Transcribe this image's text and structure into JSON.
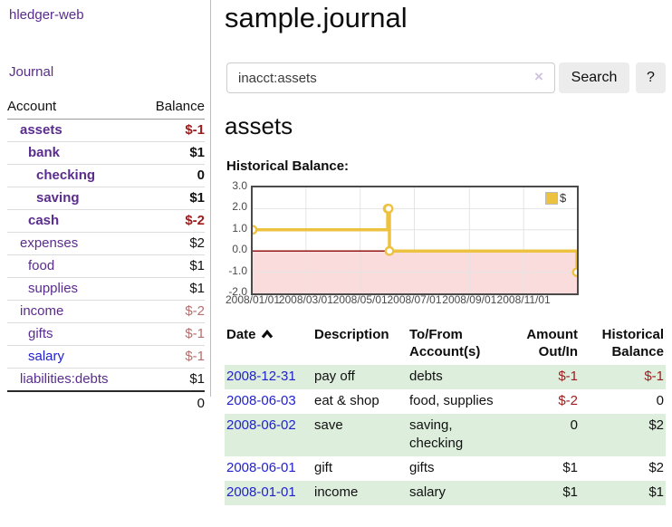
{
  "palette": {
    "brand_purple": "#5a2c8d",
    "link_blue": "#2222cc",
    "negative_strong": "#9b1c1c",
    "negative_soft": "#b56f6f",
    "row_green": "#ddeedd",
    "chart_line_gold": "#edc240",
    "chart_negative_fill": "#fbdcdc",
    "chart_zero_line": "#8b0000"
  },
  "app": {
    "brand": "hledger-web",
    "nav_journal": "Journal"
  },
  "sidebar": {
    "header": {
      "account": "Account",
      "balance": "Balance"
    },
    "accounts": [
      {
        "name": "assets",
        "balance": "$-1",
        "indent": 1,
        "bold": true,
        "balance_tone": "negative-strong"
      },
      {
        "name": "bank",
        "balance": "$1",
        "indent": 2,
        "bold": true,
        "balance_tone": "plain"
      },
      {
        "name": "checking",
        "balance": "0",
        "indent": 3,
        "bold": true,
        "balance_tone": "plain"
      },
      {
        "name": "saving",
        "balance": "$1",
        "indent": 3,
        "bold": true,
        "balance_tone": "plain"
      },
      {
        "name": "cash",
        "balance": "$-2",
        "indent": 2,
        "bold": true,
        "balance_tone": "negative-strong"
      },
      {
        "name": "expenses",
        "balance": "$2",
        "indent": 1,
        "bold": false,
        "balance_tone": "plain"
      },
      {
        "name": "food",
        "balance": "$1",
        "indent": 2,
        "bold": false,
        "balance_tone": "plain"
      },
      {
        "name": "supplies",
        "balance": "$1",
        "indent": 2,
        "bold": false,
        "balance_tone": "plain"
      },
      {
        "name": "income",
        "balance": "$-2",
        "indent": 1,
        "bold": false,
        "balance_tone": "negative-soft"
      },
      {
        "name": "gifts",
        "balance": "$-1",
        "indent": 2,
        "bold": false,
        "balance_tone": "negative-soft"
      },
      {
        "name": "salary",
        "balance": "$-1",
        "indent": 2,
        "bold": false,
        "balance_tone": "negative-soft",
        "link_tone": "blue"
      },
      {
        "name": "liabilities:debts",
        "balance": "$1",
        "indent": 1,
        "bold": false,
        "balance_tone": "plain",
        "last": true
      }
    ],
    "total": "0"
  },
  "main": {
    "title": "sample.journal",
    "search": {
      "value": "inacct:assets",
      "clear_icon": "×",
      "search_button": "Search",
      "help_button": "?"
    },
    "account_heading": "assets",
    "chart_title": "Historical Balance:"
  },
  "chart_data": {
    "type": "line",
    "step": true,
    "title": "Historical Balance:",
    "legend": [
      {
        "label": "$",
        "color": "#edc240"
      }
    ],
    "legend_position": "top-right",
    "grid": true,
    "xlim": [
      "2008-01-01",
      "2008-12-31"
    ],
    "ylim": [
      -2,
      3
    ],
    "xticks": [
      {
        "label": "2008/01/01",
        "date": "2008-01-01"
      },
      {
        "label": "2008/03/01",
        "date": "2008-03-01"
      },
      {
        "label": "2008/05/01",
        "date": "2008-05-01"
      },
      {
        "label": "2008/07/01",
        "date": "2008-07-01"
      },
      {
        "label": "2008/09/01",
        "date": "2008-09-01"
      },
      {
        "label": "2008/11/01",
        "date": "2008-11-01"
      }
    ],
    "yticks": [
      {
        "label": "3.0",
        "value": 3
      },
      {
        "label": "2.0",
        "value": 2
      },
      {
        "label": "1.0",
        "value": 1
      },
      {
        "label": "0.0",
        "value": 0
      },
      {
        "label": "-1.0",
        "value": -1
      },
      {
        "label": "-2.0",
        "value": -2
      }
    ],
    "series": [
      {
        "name": "$",
        "color": "#edc240",
        "points": [
          [
            "2008-01-01",
            1
          ],
          [
            "2008-06-01",
            2
          ],
          [
            "2008-06-02",
            2
          ],
          [
            "2008-06-03",
            0
          ],
          [
            "2008-12-31",
            -1
          ]
        ]
      }
    ],
    "negative_region_fill": "#fbdcdc",
    "zero_line_color": "#8b0000"
  },
  "register": {
    "columns": [
      {
        "label": "Date",
        "sort": "asc",
        "align": "left"
      },
      {
        "label": "Description",
        "align": "left"
      },
      {
        "label": "To/From Account(s)",
        "align": "left"
      },
      {
        "label": "Amount Out/In",
        "align": "right"
      },
      {
        "label": "Historical Balance",
        "align": "right"
      }
    ],
    "rows": [
      {
        "date": "2008-12-31",
        "description": "pay off",
        "accounts": "debts",
        "amount": "$-1",
        "amount_negative": true,
        "balance": "$-1",
        "balance_negative": true
      },
      {
        "date": "2008-06-03",
        "description": "eat & shop",
        "accounts": "food, supplies",
        "amount": "$-2",
        "amount_negative": true,
        "balance": "0",
        "balance_negative": false
      },
      {
        "date": "2008-06-02",
        "description": "save",
        "accounts": "saving, checking",
        "amount": "0",
        "amount_negative": false,
        "balance": "$2",
        "balance_negative": false
      },
      {
        "date": "2008-06-01",
        "description": "gift",
        "accounts": "gifts",
        "amount": "$1",
        "amount_negative": false,
        "balance": "$2",
        "balance_negative": false
      },
      {
        "date": "2008-01-01",
        "description": "income",
        "accounts": "salary",
        "amount": "$1",
        "amount_negative": false,
        "balance": "$1",
        "balance_negative": false
      }
    ]
  }
}
